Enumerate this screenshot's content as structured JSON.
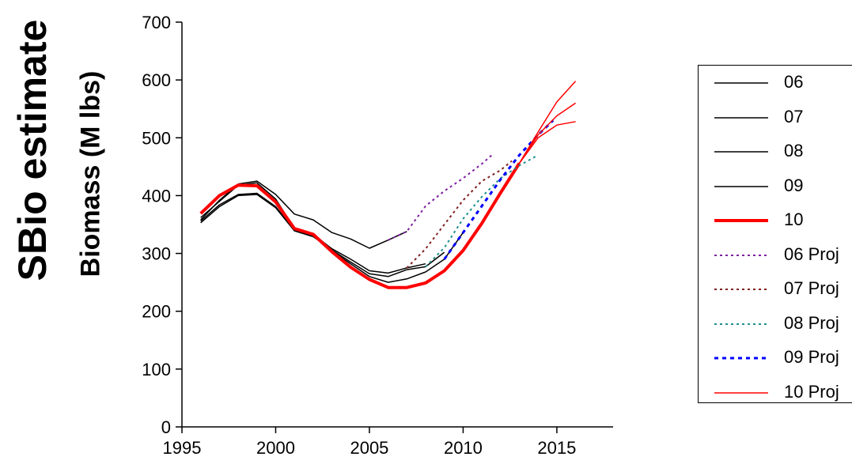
{
  "title_left": "SBio estimate",
  "chart_data": {
    "type": "line",
    "title": "SBio estimate",
    "xlabel": "",
    "ylabel": "Biomass (M lbs)",
    "xlim": [
      1995,
      2018
    ],
    "ylim": [
      0,
      700
    ],
    "xticks": [
      1995,
      2000,
      2005,
      2010,
      2015
    ],
    "yticks": [
      0,
      100,
      200,
      300,
      400,
      500,
      600,
      700
    ],
    "grid": false,
    "legend_position": "right",
    "series": [
      {
        "name": "06",
        "color": "#000000",
        "style": "solid",
        "width": 1.5,
        "x": [
          1996,
          1997,
          1998,
          1999,
          2000,
          2001,
          2002,
          2003,
          2004,
          2005,
          2006,
          2007
        ],
        "y": [
          358,
          392,
          420,
          425,
          402,
          368,
          358,
          336,
          325,
          309,
          323,
          338
        ]
      },
      {
        "name": "07",
        "color": "#000000",
        "style": "solid",
        "width": 1.5,
        "x": [
          1996,
          1997,
          1998,
          1999,
          2000,
          2001,
          2002,
          2003,
          2004,
          2005,
          2006,
          2007,
          2008
        ],
        "y": [
          362,
          390,
          418,
          422,
          394,
          343,
          333,
          308,
          290,
          270,
          266,
          275,
          282
        ]
      },
      {
        "name": "08",
        "color": "#000000",
        "style": "solid",
        "width": 1.5,
        "x": [
          1996,
          1997,
          1998,
          1999,
          2000,
          2001,
          2002,
          2003,
          2004,
          2005,
          2006,
          2007,
          2008,
          2009
        ],
        "y": [
          353,
          381,
          400,
          402,
          379,
          339,
          329,
          306,
          285,
          265,
          260,
          272,
          277,
          302
        ]
      },
      {
        "name": "09",
        "color": "#000000",
        "style": "solid",
        "width": 1.5,
        "x": [
          1996,
          1997,
          1998,
          1999,
          2000,
          2001,
          2002,
          2003,
          2004,
          2005,
          2006,
          2007,
          2008,
          2009,
          2010
        ],
        "y": [
          356,
          384,
          402,
          404,
          381,
          340,
          330,
          304,
          282,
          260,
          250,
          256,
          268,
          290,
          336
        ]
      },
      {
        "name": "10",
        "color": "#ff0000",
        "style": "solid",
        "width": 4,
        "x": [
          1996,
          1997,
          1998,
          1999,
          2000,
          2001,
          2002,
          2003,
          2004,
          2005,
          2006,
          2007,
          2008,
          2009,
          2010,
          2011,
          2012,
          2013
        ],
        "y": [
          369,
          400,
          418,
          417,
          389,
          343,
          333,
          303,
          276,
          255,
          241,
          241,
          249,
          270,
          305,
          352,
          405,
          456
        ]
      },
      {
        "name": "06 Proj",
        "color": "#7f1f9f",
        "style": "dotted",
        "width": 2,
        "x": [
          2006,
          2007,
          2008,
          2009,
          2010,
          2011,
          2011.6
        ],
        "y": [
          323,
          338,
          382,
          408,
          430,
          455,
          472
        ]
      },
      {
        "name": "07 Proj",
        "color": "#7f1f1f",
        "style": "dotted",
        "width": 2,
        "x": [
          2007,
          2008,
          2009,
          2010,
          2011,
          2012,
          2012.6
        ],
        "y": [
          275,
          308,
          350,
          392,
          425,
          444,
          460
        ]
      },
      {
        "name": "08 Proj",
        "color": "#1f8f8f",
        "style": "dotted",
        "width": 2,
        "x": [
          2008,
          2009,
          2010,
          2011,
          2012,
          2013,
          2014
        ],
        "y": [
          277,
          310,
          360,
          398,
          430,
          452,
          470
        ]
      },
      {
        "name": "09 Proj",
        "color": "#0000ff",
        "style": "dotted",
        "width": 3,
        "x": [
          2009,
          2010,
          2011,
          2012,
          2013,
          2014,
          2014.8
        ],
        "y": [
          290,
          336,
          382,
          428,
          470,
          505,
          530
        ]
      },
      {
        "name": "10 Proj",
        "color": "#ff0000",
        "style": "solid",
        "width": 1.5,
        "x": [
          2013,
          2014,
          2015,
          2016
        ],
        "y": [
          456,
          500,
          522,
          528
        ],
        "branches": [
          {
            "x": [
              2013,
              2014,
              2015,
              2016
            ],
            "y": [
              456,
              505,
              538,
              560
            ]
          },
          {
            "x": [
              2013,
              2014,
              2015,
              2016
            ],
            "y": [
              456,
              510,
              562,
              598
            ]
          }
        ]
      }
    ]
  }
}
